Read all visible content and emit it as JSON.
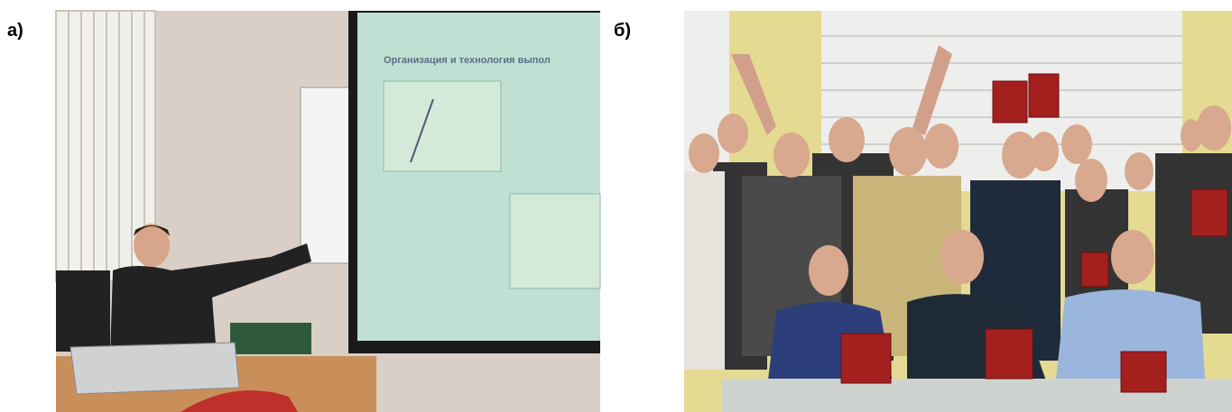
{
  "panels": [
    {
      "label": "а)",
      "slide_title": "Организация и технология выпол"
    },
    {
      "label": "б)"
    }
  ]
}
